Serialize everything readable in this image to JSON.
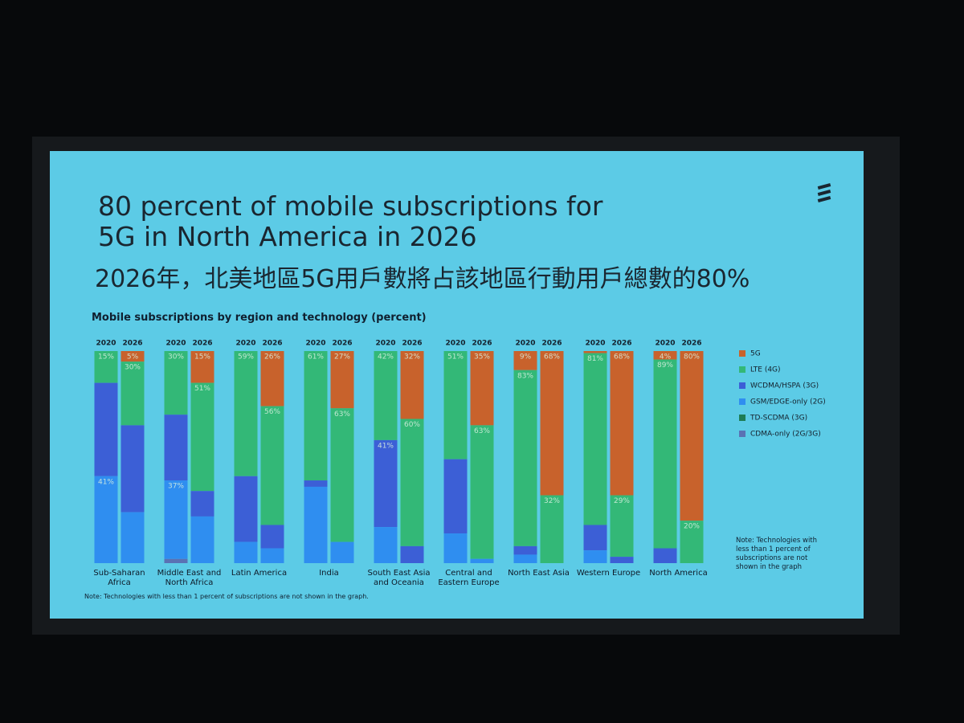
{
  "chart_data": {
    "type": "stacked_bar",
    "title": "80 percent of mobile subscriptions for 5G in North America in 2026",
    "title_zh": "2026年，北美地區5G用戶數將占該地區行動用戶總數的80%",
    "subtitle": "Mobile subscriptions by region and technology (percent)",
    "categories": [
      "Sub-Saharan Africa",
      "Middle East and North Africa",
      "Latin America",
      "India",
      "South East Asia and Oceania",
      "Central and Eastern Europe",
      "North East Asia",
      "Western Europe",
      "North America"
    ],
    "bars": [
      "2020",
      "2026"
    ],
    "ylim": [
      0,
      100
    ],
    "series": [
      {
        "name": "5G",
        "color": "#c8622c",
        "values": [
          [
            0,
            5
          ],
          [
            0,
            15
          ],
          [
            0,
            26
          ],
          [
            0,
            27
          ],
          [
            0,
            32
          ],
          [
            0,
            35
          ],
          [
            9,
            68
          ],
          [
            1,
            68
          ],
          [
            4,
            80
          ]
        ],
        "value_labels": [
          [
            null,
            "5%"
          ],
          [
            null,
            "15%"
          ],
          [
            null,
            "26%"
          ],
          [
            null,
            "27%"
          ],
          [
            null,
            "32%"
          ],
          [
            null,
            "35%"
          ],
          [
            "9%",
            "68%"
          ],
          [
            null,
            "68%"
          ],
          [
            "4%",
            "80%"
          ]
        ]
      },
      {
        "name": "LTE (4G)",
        "color": "#33b877",
        "values": [
          [
            15,
            30
          ],
          [
            30,
            51
          ],
          [
            59,
            56
          ],
          [
            61,
            63
          ],
          [
            42,
            60
          ],
          [
            51,
            63
          ],
          [
            83,
            32
          ],
          [
            81,
            29
          ],
          [
            89,
            20
          ]
        ],
        "value_labels": [
          [
            "15%",
            "30%"
          ],
          [
            "30%",
            "51%"
          ],
          [
            "59%",
            "56%"
          ],
          [
            "61%",
            "63%"
          ],
          [
            "42%",
            "60%"
          ],
          [
            "51%",
            "63%"
          ],
          [
            "83%",
            "32%"
          ],
          [
            "81%",
            "29%"
          ],
          [
            "89%",
            "20%"
          ]
        ]
      },
      {
        "name": "WCDMA/HSPA (3G)",
        "color": "#3c5fd6",
        "values": [
          [
            44,
            41
          ],
          [
            31,
            12
          ],
          [
            31,
            11
          ],
          [
            3,
            0
          ],
          [
            41,
            8
          ],
          [
            35,
            0
          ],
          [
            4,
            0
          ],
          [
            12,
            3
          ],
          [
            7,
            0
          ]
        ],
        "value_labels": [
          [
            null,
            null
          ],
          [
            null,
            null
          ],
          [
            null,
            null
          ],
          [
            null,
            null
          ],
          [
            "41%",
            null
          ],
          [
            null,
            null
          ],
          [
            null,
            null
          ],
          [
            null,
            null
          ],
          [
            null,
            null
          ]
        ]
      },
      {
        "name": "GSM/EDGE-only (2G)",
        "color": "#2f8ef0",
        "values": [
          [
            41,
            24
          ],
          [
            37,
            22
          ],
          [
            10,
            7
          ],
          [
            36,
            10
          ],
          [
            17,
            0
          ],
          [
            14,
            2
          ],
          [
            4,
            0
          ],
          [
            6,
            0
          ],
          [
            0,
            0
          ]
        ],
        "value_labels": [
          [
            "41%",
            null
          ],
          [
            "37%",
            null
          ],
          [
            null,
            null
          ],
          [
            null,
            null
          ],
          [
            null,
            null
          ],
          [
            null,
            null
          ],
          [
            null,
            null
          ],
          [
            null,
            null
          ],
          [
            null,
            null
          ]
        ]
      },
      {
        "name": "TD-SCDMA (3G)",
        "color": "#1e7d56",
        "values": [
          [
            0,
            0
          ],
          [
            0,
            0
          ],
          [
            0,
            0
          ],
          [
            0,
            0
          ],
          [
            0,
            0
          ],
          [
            0,
            0
          ],
          [
            0,
            0
          ],
          [
            0,
            0
          ],
          [
            0,
            0
          ]
        ],
        "value_labels": [
          [
            null,
            null
          ],
          [
            null,
            null
          ],
          [
            null,
            null
          ],
          [
            null,
            null
          ],
          [
            null,
            null
          ],
          [
            null,
            null
          ],
          [
            null,
            null
          ],
          [
            null,
            null
          ],
          [
            null,
            null
          ]
        ]
      },
      {
        "name": "CDMA-only (2G/3G)",
        "color": "#5a72b4",
        "values": [
          [
            0,
            0
          ],
          [
            2,
            0
          ],
          [
            0,
            0
          ],
          [
            0,
            0
          ],
          [
            0,
            0
          ],
          [
            0,
            0
          ],
          [
            0,
            0
          ],
          [
            0,
            0
          ],
          [
            0,
            0
          ]
        ],
        "value_labels": [
          [
            null,
            null
          ],
          [
            null,
            null
          ],
          [
            null,
            null
          ],
          [
            null,
            null
          ],
          [
            null,
            null
          ],
          [
            null,
            null
          ],
          [
            null,
            null
          ],
          [
            null,
            null
          ],
          [
            null,
            null
          ]
        ]
      }
    ],
    "note_right": "Note: Technologies with less than 1 percent of subscriptions are not shown in the graph",
    "footnote": "Note: Technologies with less than 1 percent of subscriptions are not shown in the graph."
  }
}
